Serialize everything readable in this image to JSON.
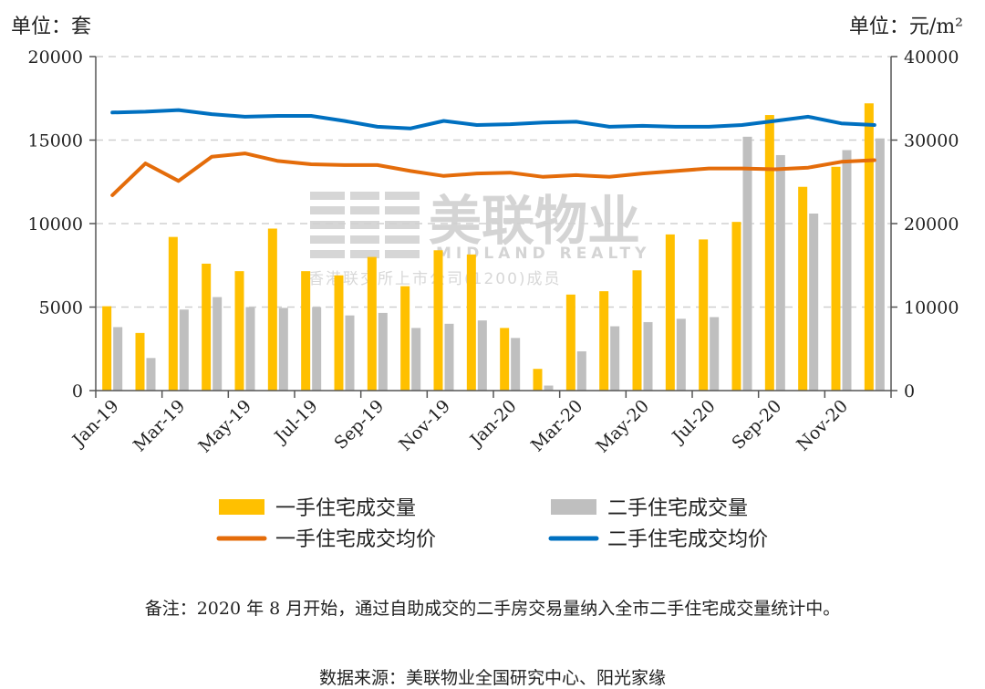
{
  "chart_data": {
    "type": "bar+line",
    "left_unit": "单位：套",
    "right_unit": "单位：元/m²",
    "categories": [
      "Jan-19",
      "Feb-19",
      "Mar-19",
      "Apr-19",
      "May-19",
      "Jun-19",
      "Jul-19",
      "Aug-19",
      "Sep-19",
      "Oct-19",
      "Nov-19",
      "Dec-19",
      "Jan-20",
      "Feb-20",
      "Mar-20",
      "Apr-20",
      "May-20",
      "Jun-20",
      "Jul-20",
      "Aug-20",
      "Sep-20",
      "Oct-20",
      "Nov-20",
      "Dec-20"
    ],
    "x_tick_labels": [
      "Jan-19",
      "Mar-19",
      "May-19",
      "Jul-19",
      "Sep-19",
      "Nov-19",
      "Jan-20",
      "Mar-20",
      "May-20",
      "Jul-20",
      "Sep-20",
      "Nov-20"
    ],
    "y_left": {
      "ticks": [
        0,
        5000,
        10000,
        15000,
        20000
      ],
      "ylim": [
        0,
        20000
      ]
    },
    "y_right": {
      "ticks": [
        0,
        10000,
        20000,
        30000,
        40000
      ],
      "ylim": [
        0,
        40000
      ]
    },
    "grid": "horizontal-dashed",
    "legend_position": "bottom",
    "series": [
      {
        "name": "一手住宅成交量",
        "type": "bar",
        "axis": "left",
        "color": "#FFC000",
        "values": [
          5050,
          3450,
          9200,
          7600,
          7150,
          9700,
          7150,
          6900,
          8000,
          6250,
          8400,
          8150,
          3750,
          1300,
          5750,
          5950,
          7200,
          9350,
          9050,
          10100,
          16500,
          12200,
          13400,
          17200
        ]
      },
      {
        "name": "二手住宅成交量",
        "type": "bar",
        "axis": "left",
        "color": "#BFBFBF",
        "values": [
          3800,
          1950,
          4850,
          5600,
          5000,
          4950,
          5000,
          4500,
          4650,
          3750,
          4000,
          4200,
          3150,
          300,
          2350,
          3850,
          4100,
          4300,
          4400,
          15200,
          14100,
          10600,
          14400,
          15100
        ]
      },
      {
        "name": "一手住宅成交均价",
        "type": "line",
        "axis": "right",
        "color": "#E46C0A",
        "values": [
          23400,
          27200,
          25100,
          28000,
          28400,
          27500,
          27100,
          27000,
          27000,
          26300,
          25700,
          26000,
          26100,
          25600,
          25800,
          25600,
          26000,
          26300,
          26600,
          26600,
          26500,
          26700,
          27400,
          27600
        ]
      },
      {
        "name": "二手住宅成交均价",
        "type": "line",
        "axis": "right",
        "color": "#0070C0",
        "values": [
          33300,
          33400,
          33600,
          33100,
          32800,
          32900,
          32900,
          32300,
          31600,
          31400,
          32300,
          31800,
          31900,
          32100,
          32200,
          31600,
          31700,
          31600,
          31600,
          31800,
          32300,
          32800,
          32000,
          31800
        ]
      }
    ]
  },
  "watermark": {
    "company_cn": "美联物业",
    "company_en": "MIDLAND REALTY",
    "listing": "香港联交所上市公司(1200)成员"
  },
  "note": "备注：2020 年 8 月开始，通过自助成交的二手房交易量纳入全市二手住宅成交量统计中。",
  "source": "数据来源：美联物业全国研究中心、阳光家缘"
}
